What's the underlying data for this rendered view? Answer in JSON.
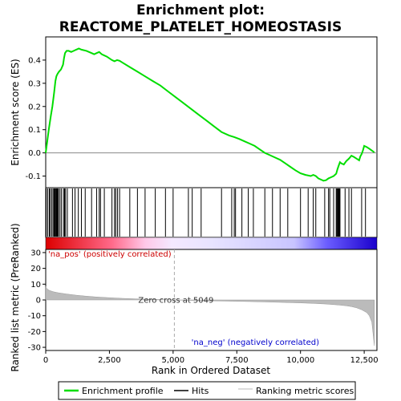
{
  "chart_data": {
    "type": "line",
    "title_line1": "Enrichment plot:",
    "title_line2": "REACTOME_PLATELET_HOMEOSTASIS",
    "xlabel": "Rank in Ordered Dataset",
    "ylabel_top": "Enrichment score (ES)",
    "ylabel_bottom": "Ranked list metric (PreRanked)",
    "xlim": [
      0,
      13000
    ],
    "es_ylim": [
      -0.15,
      0.5
    ],
    "metric_ylim": [
      -32,
      32
    ],
    "x_ticks": [
      0,
      2500,
      5000,
      7500,
      10000,
      12500
    ],
    "x_tick_labels": [
      "0",
      "2,500",
      "5,000",
      "7,500",
      "10,000",
      "12,500"
    ],
    "es_ticks": [
      -0.1,
      0.0,
      0.1,
      0.2,
      0.3,
      0.4
    ],
    "es_tick_labels": [
      "-0.1",
      "0.0",
      "0.1",
      "0.2",
      "0.3",
      "0.4"
    ],
    "metric_ticks": [
      -30,
      -20,
      -10,
      0,
      10,
      20,
      30
    ],
    "metric_tick_labels": [
      "-30",
      "-20",
      "-10",
      "0",
      "10",
      "20",
      "30"
    ],
    "zero_cross": 5049,
    "zero_cross_label": "Zero cross at 5049",
    "pos_label": "'na_pos' (positively correlated)",
    "neg_label": "'na_neg' (negatively correlated)",
    "legend": [
      {
        "label": "Enrichment profile",
        "color": "#00dd00"
      },
      {
        "label": "Hits",
        "color": "#000000"
      },
      {
        "label": "Ranking metric scores",
        "color": "#bbbbbb"
      }
    ],
    "series": [
      {
        "name": "Enrichment profile",
        "color": "#00dd00",
        "x": [
          0,
          60,
          120,
          200,
          260,
          330,
          380,
          420,
          460,
          520,
          600,
          680,
          720,
          760,
          820,
          900,
          1000,
          1100,
          1200,
          1300,
          1400,
          1600,
          1800,
          1900,
          2000,
          2100,
          2200,
          2400,
          2600,
          2700,
          2800,
          2900,
          3000,
          3300,
          3600,
          3900,
          4200,
          4500,
          4800,
          5100,
          5400,
          5700,
          6000,
          6300,
          6600,
          6900,
          7200,
          7400,
          7600,
          7800,
          8000,
          8200,
          8400,
          8600,
          8800,
          9000,
          9200,
          9400,
          9600,
          9800,
          10000,
          10200,
          10400,
          10500,
          10600,
          10700,
          10800,
          10900,
          11000,
          11100,
          11200,
          11300,
          11400,
          11450,
          11500,
          11550,
          11600,
          11700,
          11800,
          11900,
          12000,
          12100,
          12200,
          12300,
          12350,
          12400,
          12450,
          12500,
          12600,
          12700,
          12800,
          12900
        ],
        "y": [
          0.0,
          0.05,
          0.1,
          0.16,
          0.2,
          0.26,
          0.31,
          0.33,
          0.34,
          0.35,
          0.36,
          0.38,
          0.41,
          0.43,
          0.44,
          0.44,
          0.435,
          0.44,
          0.445,
          0.45,
          0.445,
          0.44,
          0.43,
          0.425,
          0.43,
          0.435,
          0.425,
          0.415,
          0.4,
          0.395,
          0.4,
          0.397,
          0.39,
          0.37,
          0.35,
          0.33,
          0.31,
          0.29,
          0.265,
          0.24,
          0.215,
          0.19,
          0.165,
          0.14,
          0.115,
          0.09,
          0.075,
          0.068,
          0.06,
          0.05,
          0.04,
          0.03,
          0.015,
          0.0,
          -0.01,
          -0.02,
          -0.03,
          -0.045,
          -0.06,
          -0.075,
          -0.088,
          -0.095,
          -0.1,
          -0.095,
          -0.1,
          -0.11,
          -0.115,
          -0.12,
          -0.118,
          -0.11,
          -0.105,
          -0.1,
          -0.09,
          -0.07,
          -0.055,
          -0.04,
          -0.045,
          -0.05,
          -0.035,
          -0.025,
          -0.012,
          -0.018,
          -0.025,
          -0.032,
          -0.015,
          -0.005,
          0.01,
          0.03,
          0.025,
          0.018,
          0.01,
          0.002
        ]
      },
      {
        "name": "Ranking metric scores",
        "color": "#bbbbbb",
        "x": [
          0,
          50,
          150,
          300,
          500,
          800,
          1200,
          1600,
          2000,
          2500,
          3000,
          3500,
          4000,
          4500,
          5049,
          5500,
          6000,
          7000,
          8000,
          9000,
          10000,
          10500,
          11000,
          11500,
          11800,
          12000,
          12200,
          12400,
          12600,
          12700,
          12800,
          12900
        ],
        "y": [
          8.5,
          7,
          6,
          5.2,
          4.5,
          3.8,
          3.0,
          2.4,
          1.9,
          1.4,
          1.0,
          0.7,
          0.45,
          0.25,
          0.0,
          -0.2,
          -0.4,
          -0.7,
          -1.0,
          -1.4,
          -1.9,
          -2.2,
          -2.6,
          -3.2,
          -3.7,
          -4.2,
          -5.0,
          -6.2,
          -8.0,
          -10.0,
          -14.0,
          -29.0
        ]
      }
    ],
    "hits": [
      20,
      80,
      140,
      180,
      240,
      290,
      330,
      360,
      390,
      420,
      440,
      470,
      500,
      560,
      620,
      700,
      740,
      780,
      850,
      1050,
      1150,
      1280,
      1400,
      1550,
      1800,
      2000,
      2100,
      2150,
      2300,
      2600,
      2700,
      2750,
      2820,
      2900,
      3300,
      3600,
      3900,
      4300,
      4700,
      5000,
      5600,
      5750,
      6100,
      6900,
      7300,
      7400,
      7450,
      7700,
      7950,
      8150,
      8600,
      8900,
      9200,
      9500,
      10000,
      10300,
      10500,
      10600,
      10950,
      11100,
      11150,
      11300,
      11400,
      11430,
      11460,
      11490,
      11520,
      11550,
      11750,
      11900,
      12000,
      12400,
      12550
    ]
  }
}
